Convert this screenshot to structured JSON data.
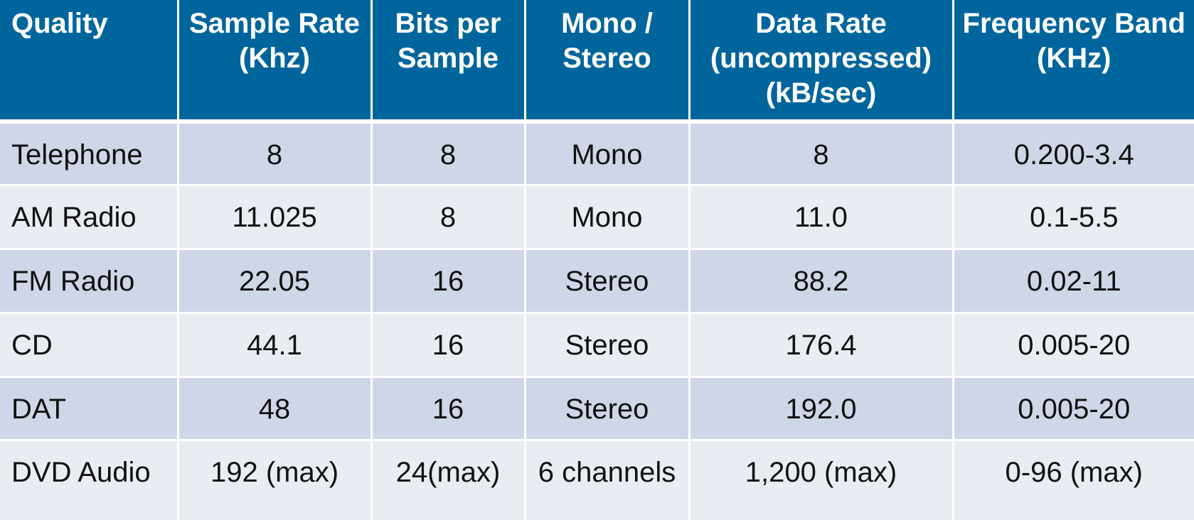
{
  "table": {
    "headers": [
      "Quality",
      "Sample Rate (Khz)",
      "Bits per Sample",
      "Mono / Stereo",
      "Data Rate (uncompressed) (kB/sec)",
      "Frequency Band (KHz)"
    ],
    "rows": [
      [
        "Telephone",
        "8",
        "8",
        "Mono",
        "8",
        "0.200-3.4"
      ],
      [
        "AM Radio",
        "11.025",
        "8",
        "Mono",
        "11.0",
        "0.1-5.5"
      ],
      [
        "FM Radio",
        "22.05",
        "16",
        "Stereo",
        "88.2",
        "0.02-11"
      ],
      [
        "CD",
        "44.1",
        "16",
        "Stereo",
        "176.4",
        "0.005-20"
      ],
      [
        "DAT",
        "48",
        "16",
        "Stereo",
        "192.0",
        "0.005-20"
      ],
      [
        "DVD Audio",
        "192 (max)",
        "24(max)",
        "6 channels",
        "1,200 (max)",
        "0-96 (max)"
      ]
    ]
  },
  "colors": {
    "header_bg": "#00659c",
    "row_odd_bg": "#cfd6e7",
    "row_even_bg": "#e9ecf3"
  }
}
